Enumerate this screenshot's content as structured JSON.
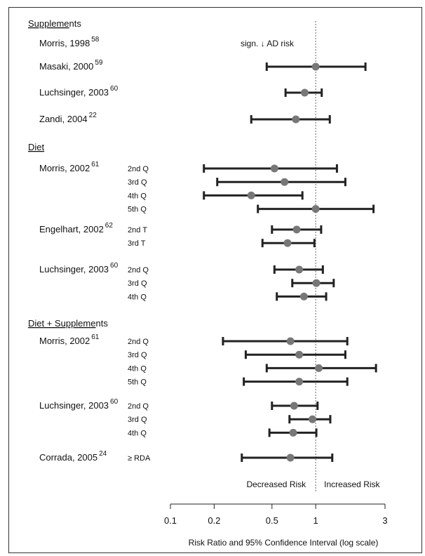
{
  "chart_data": {
    "type": "forest",
    "xlabel": "Risk Ratio and 95% Confidence Interval (log scale)",
    "xscale": "log",
    "xlim": [
      0.1,
      3
    ],
    "xticks": [
      0.1,
      0.2,
      0.5,
      1,
      3
    ],
    "xtick_labels": [
      "0.1",
      "0.2",
      "0.5",
      "1",
      "3"
    ],
    "reference_line": 1,
    "left_annotation": "Decreased Risk",
    "right_annotation": "Increased Risk",
    "sections": [
      {
        "label_u": "Suppleme",
        "label_rest": "nts",
        "studies": [
          {
            "author": "Morris, 1998",
            "ref": "58",
            "note": "sign. ↓ AD risk",
            "rows": []
          },
          {
            "author": "Masaki, 2000",
            "ref": "59",
            "rows": [
              {
                "sub": "",
                "est": 1.0,
                "lo": 0.46,
                "hi": 2.2
              }
            ]
          },
          {
            "author": "Luchsinger, 2003",
            "ref": "60",
            "rows": [
              {
                "sub": "",
                "est": 0.84,
                "lo": 0.62,
                "hi": 1.1
              }
            ]
          },
          {
            "author": "Zandi, 2004",
            "ref": "22",
            "rows": [
              {
                "sub": "",
                "est": 0.73,
                "lo": 0.36,
                "hi": 1.25
              }
            ]
          }
        ]
      },
      {
        "label_u": "Diet",
        "label_rest": "",
        "studies": [
          {
            "author": "Morris, 2002",
            "ref": "61",
            "rows": [
              {
                "sub": "2nd Q",
                "est": 0.52,
                "lo": 0.17,
                "hi": 1.4
              },
              {
                "sub": "3rd Q",
                "est": 0.61,
                "lo": 0.21,
                "hi": 1.6
              },
              {
                "sub": "4th Q",
                "est": 0.36,
                "lo": 0.17,
                "hi": 0.81
              },
              {
                "sub": "5th Q",
                "est": 1.0,
                "lo": 0.4,
                "hi": 2.5
              }
            ]
          },
          {
            "author": "Engelhart, 2002",
            "ref": "62",
            "rows": [
              {
                "sub": "2nd T",
                "est": 0.74,
                "lo": 0.5,
                "hi": 1.09
              },
              {
                "sub": "3rd T",
                "est": 0.64,
                "lo": 0.43,
                "hi": 0.98
              }
            ]
          },
          {
            "author": "Luchsinger, 2003",
            "ref": "60",
            "rows": [
              {
                "sub": "2nd Q",
                "est": 0.77,
                "lo": 0.52,
                "hi": 1.12
              },
              {
                "sub": "3rd Q",
                "est": 1.01,
                "lo": 0.69,
                "hi": 1.33
              },
              {
                "sub": "4th Q",
                "est": 0.83,
                "lo": 0.54,
                "hi": 1.18
              }
            ]
          }
        ]
      },
      {
        "label_u": "Diet + Suppleme",
        "label_rest": "nts",
        "studies": [
          {
            "author": "Morris, 2002",
            "ref": "61",
            "rows": [
              {
                "sub": "2nd Q",
                "est": 0.67,
                "lo": 0.23,
                "hi": 1.65
              },
              {
                "sub": "3rd Q",
                "est": 0.77,
                "lo": 0.33,
                "hi": 1.6
              },
              {
                "sub": "4th Q",
                "est": 1.05,
                "lo": 0.46,
                "hi": 2.6
              },
              {
                "sub": "5th Q",
                "est": 0.77,
                "lo": 0.32,
                "hi": 1.65
              }
            ]
          },
          {
            "author": "Luchsinger, 2003",
            "ref": "60",
            "rows": [
              {
                "sub": "2nd Q",
                "est": 0.71,
                "lo": 0.5,
                "hi": 1.03
              },
              {
                "sub": "3rd Q",
                "est": 0.95,
                "lo": 0.66,
                "hi": 1.26
              },
              {
                "sub": "4th Q",
                "est": 0.7,
                "lo": 0.48,
                "hi": 1.01
              }
            ]
          },
          {
            "author": "Corrada, 2005",
            "ref": "24",
            "rows": [
              {
                "sub": "≥ RDA",
                "est": 0.67,
                "lo": 0.31,
                "hi": 1.3
              }
            ]
          }
        ]
      }
    ]
  }
}
